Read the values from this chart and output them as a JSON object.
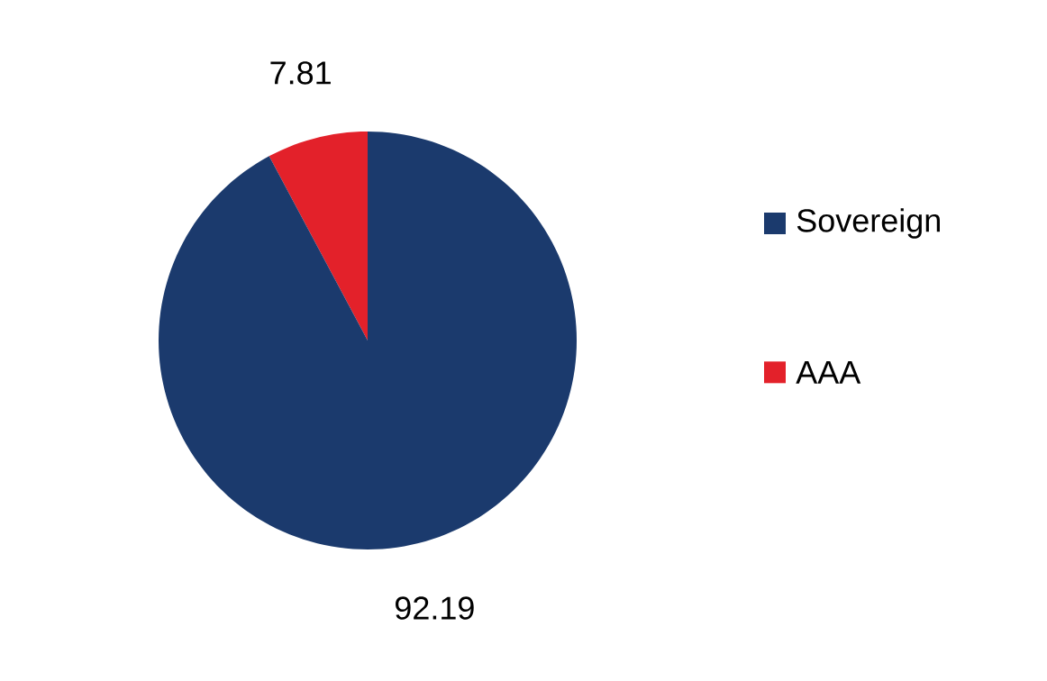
{
  "chart_data": {
    "type": "pie",
    "categories": [
      "Sovereign",
      "AAA"
    ],
    "values": [
      92.19,
      7.81
    ],
    "colors": [
      "#1b3a6d",
      "#e3212a"
    ],
    "data_labels": true,
    "legend": "right"
  }
}
